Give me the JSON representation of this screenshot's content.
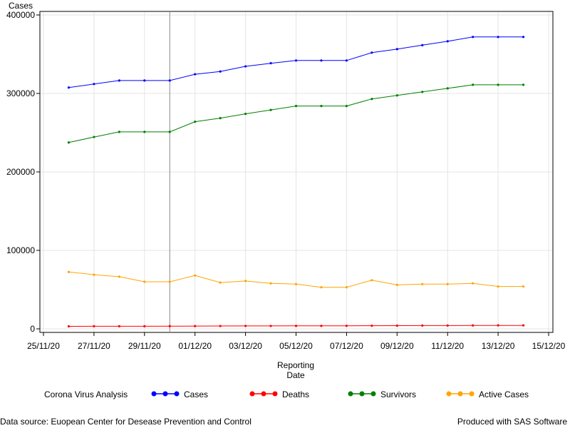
{
  "chart_data": {
    "type": "line",
    "ylabel": "Cases",
    "xlabel_line1": "Reporting",
    "xlabel_line2": "Date",
    "ylim": [
      0,
      400000
    ],
    "y_ticks": [
      0,
      100000,
      200000,
      300000,
      400000
    ],
    "y_tick_labels": [
      "0",
      "100000",
      "200000",
      "300000",
      "400000"
    ],
    "x_range": [
      "2020-11-25",
      "2020-12-15"
    ],
    "x_tick_dates": [
      "2020-11-25",
      "2020-11-27",
      "2020-11-29",
      "2020-12-01",
      "2020-12-03",
      "2020-12-05",
      "2020-12-07",
      "2020-12-09",
      "2020-12-11",
      "2020-12-13",
      "2020-12-15"
    ],
    "x_tick_labels": [
      "25/11/20",
      "27/11/20",
      "29/11/20",
      "01/12/20",
      "03/12/20",
      "05/12/20",
      "07/12/20",
      "09/12/20",
      "11/12/20",
      "13/12/20",
      "15/12/20"
    ],
    "reference_line_date": "2020-11-30",
    "grid": true,
    "x": [
      "2020-11-26",
      "2020-11-27",
      "2020-11-28",
      "2020-11-29",
      "2020-11-30",
      "2020-12-01",
      "2020-12-02",
      "2020-12-03",
      "2020-12-04",
      "2020-12-05",
      "2020-12-06",
      "2020-12-07",
      "2020-12-08",
      "2020-12-09",
      "2020-12-10",
      "2020-12-11",
      "2020-12-12",
      "2020-12-13",
      "2020-12-14"
    ],
    "series": [
      {
        "name": "Cases",
        "color": "#0000ff",
        "values": [
          307500,
          312000,
          316500,
          316500,
          316500,
          324500,
          328000,
          334500,
          338500,
          342000,
          342000,
          342000,
          352000,
          356500,
          361500,
          366500,
          372000,
          372000,
          372000
        ]
      },
      {
        "name": "Deaths",
        "color": "#ff0000",
        "values": [
          3200,
          3300,
          3300,
          3300,
          3400,
          3500,
          3600,
          3700,
          3700,
          3800,
          3800,
          3900,
          4000,
          4100,
          4200,
          4200,
          4300,
          4400,
          4400
        ]
      },
      {
        "name": "Survivors",
        "color": "#008000",
        "values": [
          237500,
          244500,
          251000,
          251000,
          251000,
          264000,
          268500,
          274000,
          279000,
          284000,
          284000,
          284000,
          293000,
          297500,
          302000,
          306500,
          311000,
          311000,
          311000
        ]
      },
      {
        "name": "Active Cases",
        "color": "#ffa500",
        "values": [
          72500,
          69000,
          66500,
          60000,
          60000,
          68000,
          59000,
          61000,
          58000,
          57000,
          53000,
          53000,
          62000,
          56000,
          57000,
          57000,
          58000,
          54000,
          54000
        ]
      }
    ],
    "legend_title": "Corona Virus Analysis",
    "legend_position": "bottom"
  },
  "footer": {
    "left": "Data source: Euopean Center for Desease Prevention and Control",
    "right": "Produced with SAS Software"
  }
}
